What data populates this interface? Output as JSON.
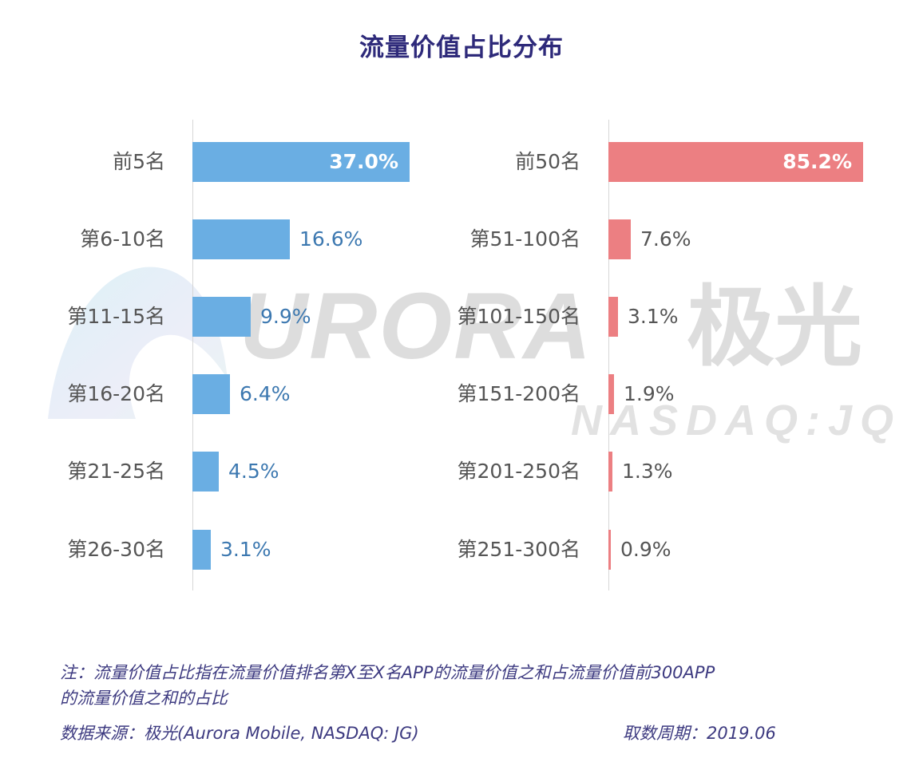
{
  "title": "流量价值占比分布",
  "watermark": {
    "brand": "URORA",
    "brand_cn": "极光",
    "ticker": "NASDAQ:JQ"
  },
  "colors": {
    "title": "#2e2a7a",
    "left_bar": "#6aaee3",
    "right_bar": "#ec7f82",
    "left_value_text": "#3c78b0",
    "note_text": "#3d3a80"
  },
  "chart_data": [
    {
      "type": "bar",
      "orientation": "horizontal",
      "title": "流量价值占比分布 — 前30名细分",
      "categories": [
        "前5名",
        "第6-10名",
        "第11-15名",
        "第16-20名",
        "第21-25名",
        "第26-30名"
      ],
      "values": [
        37.0,
        16.6,
        9.9,
        6.4,
        4.5,
        3.1
      ],
      "labels": [
        "37.0%",
        "16.6%",
        "9.9%",
        "6.4%",
        "4.5%",
        "3.1%"
      ],
      "unit": "%",
      "color": "#6aaee3",
      "xlabel": "",
      "ylabel": "",
      "grid": false
    },
    {
      "type": "bar",
      "orientation": "horizontal",
      "title": "流量价值占比分布 — 前300名细分",
      "categories": [
        "前50名",
        "第51-100名",
        "第101-150名",
        "第151-200名",
        "第201-250名",
        "第251-300名"
      ],
      "values": [
        85.2,
        7.6,
        3.1,
        1.9,
        1.3,
        0.9
      ],
      "labels": [
        "85.2%",
        "7.6%",
        "3.1%",
        "1.9%",
        "1.3%",
        "0.9%"
      ],
      "unit": "%",
      "color": "#ec7f82",
      "xlabel": "",
      "ylabel": "",
      "grid": false
    }
  ],
  "footer": {
    "note_line1": "注：流量价值占比指在流量价值排名第X至X名APP的流量价值之和占流量价值前300APP",
    "note_line2": "的流量价值之和的占比",
    "source": "数据来源：极光(Aurora Mobile, NASDAQ: JG)",
    "period": "取数周期：2019.06"
  }
}
